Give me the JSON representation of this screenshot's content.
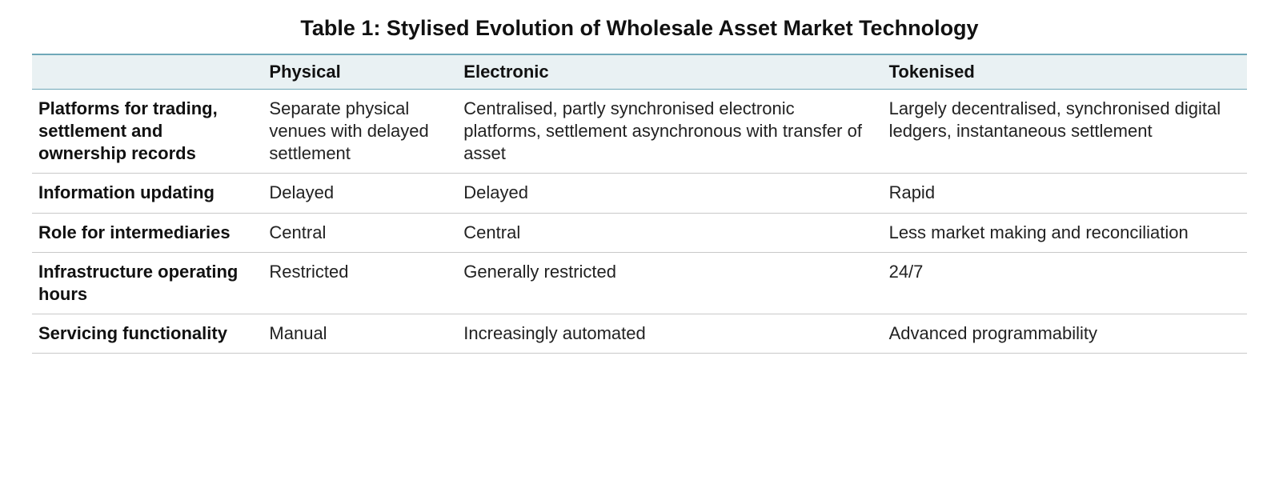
{
  "table": {
    "type": "table",
    "title": "Table 1: Stylised Evolution of Wholesale Asset Market Technology",
    "title_fontsize": 27,
    "title_fontweight": 700,
    "background_color": "#ffffff",
    "header_bg_color": "#e9f1f3",
    "header_border_color": "#6fa8b8",
    "row_border_color": "#c9c9c9",
    "text_color": "#222222",
    "label_color": "#111111",
    "cell_fontsize": 22,
    "header_fontsize": 22,
    "column_widths_pct": [
      19,
      16,
      35,
      30
    ],
    "columns": [
      "",
      "Physical",
      "Electronic",
      "Tokenised"
    ],
    "rows": [
      {
        "label": "Platforms for trading, settlement and ownership records",
        "physical": "Separate physical venues with delayed settlement",
        "electronic": "Centralised, partly synchronised electronic platforms, settlement asynchronous with transfer of asset",
        "tokenised": "Largely decentralised, synchronised digital ledgers, instantaneous settlement"
      },
      {
        "label": "Information updating",
        "physical": "Delayed",
        "electronic": "Delayed",
        "tokenised": "Rapid"
      },
      {
        "label": "Role for intermediaries",
        "physical": "Central",
        "electronic": "Central",
        "tokenised": "Less market making and reconciliation"
      },
      {
        "label": "Infrastructure operating hours",
        "physical": "Restricted",
        "electronic": "Generally restricted",
        "tokenised": "24/7"
      },
      {
        "label": "Servicing functionality",
        "physical": "Manual",
        "electronic": "Increasingly automated",
        "tokenised": "Advanced programmability"
      }
    ]
  }
}
